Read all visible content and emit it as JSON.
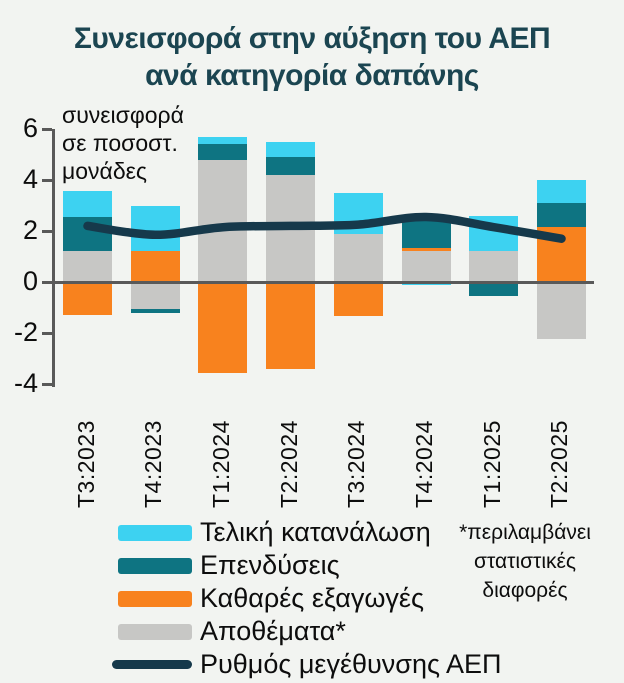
{
  "title": "Συνεισφορά στην αύξηση του ΑΕΠ\nανά κατηγορία δαπάνης",
  "unit_label": "συνεισφορά\nσε ποσοστ.\nμονάδες",
  "footnote": "*περιλαμβάνει\nστατιστικές\nδιαφορές",
  "colors": {
    "background": "#f2f4f1",
    "title": "#1b4551",
    "axis": "#595959",
    "consumption": "#3dd2f1",
    "investment": "#0e7482",
    "net_exports": "#f8821e",
    "inventories": "#c7c7c5",
    "gdp_line": "#16394b",
    "text": "#0d0d0d"
  },
  "chart_data": {
    "type": "bar",
    "subtype": "stacked-columns-with-line-overlay",
    "title": "Συνεισφορά στην αύξηση του ΑΕΠ ανά κατηγορία δαπάνης",
    "ylabel": "συνεισφορά σε ποσοστ. μονάδες",
    "xlabel": "",
    "ylim": [
      -4,
      6
    ],
    "y_ticks": [
      6,
      4,
      2,
      0,
      -2,
      -4
    ],
    "grid": "off",
    "legend_position": "bottom-left",
    "categories": [
      "T3:2023",
      "T4:2023",
      "T1:2024",
      "T2:2024",
      "T3:2024",
      "T4:2024",
      "T1:2025",
      "T2:2025"
    ],
    "series": [
      {
        "name": "Τελική κατανάλωση",
        "color": "#3dd2f1",
        "values": [
          1.0,
          1.8,
          0.3,
          0.6,
          1.6,
          -0.1,
          1.4,
          0.9
        ]
      },
      {
        "name": "Επενδύσεις",
        "color": "#0e7482",
        "values": [
          1.35,
          -0.15,
          0.6,
          0.7,
          0.0,
          1.25,
          -0.5,
          0.95
        ]
      },
      {
        "name": "Καθαρές εξαγωγές",
        "color": "#f8821e",
        "values": [
          -1.3,
          1.2,
          -3.55,
          -3.4,
          -1.35,
          0.15,
          -0.05,
          2.15
        ]
      },
      {
        "name": "Αποθέματα*",
        "color": "#c7c7c5",
        "values": [
          1.2,
          -1.05,
          4.8,
          4.2,
          1.9,
          1.2,
          1.2,
          -2.25
        ]
      }
    ],
    "stack_order_bottom_to_top": [
      "Αποθέματα*",
      "Καθαρές εξαγωγές",
      "Επενδύσεις",
      "Τελική κατανάλωση"
    ],
    "line_series": {
      "name": "Ρυθμός μεγέθυνσης ΑΕΠ",
      "color": "#16394b",
      "values": [
        2.2,
        1.85,
        2.15,
        2.2,
        2.25,
        2.55,
        2.15,
        1.7
      ]
    }
  }
}
